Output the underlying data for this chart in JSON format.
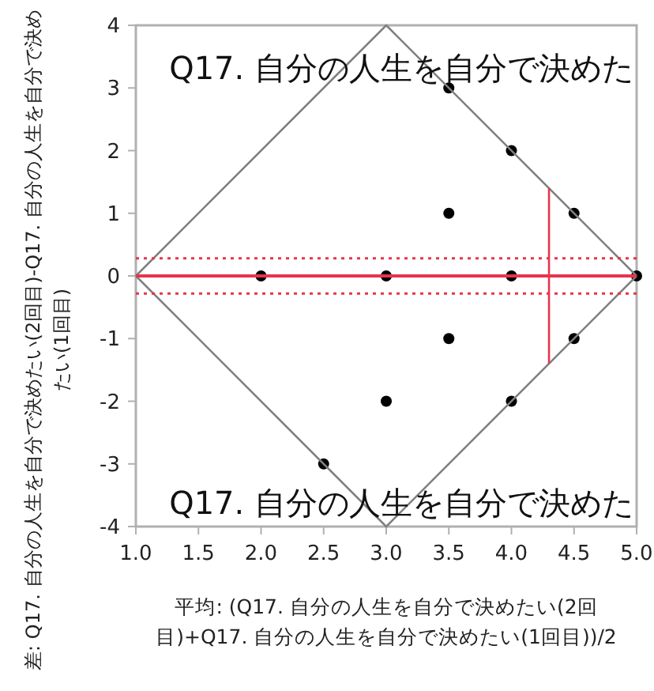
{
  "chart_data": {
    "type": "scatter",
    "xlabel": "平均: (Q17. 自分の人生を自分で決めたい(2回目)+Q17. 自分の人生を自分で決めたい(1回目))/2",
    "ylabel": "差: Q17. 自分の人生を自分で決めたい(2回目)-Q17. 自分の人生を自分で決めたい(1回目)",
    "annotations": [
      "Q17. 自分の人生を自分で決めた",
      "Q17. 自分の人生を自分で決めた"
    ],
    "series": [
      {
        "type": "scatter",
        "color": "#000000",
        "x": [
          2,
          3,
          3.5,
          4,
          3.5,
          4.5,
          4,
          5,
          3.5,
          4.5,
          3,
          4,
          2.5
        ],
        "values": [
          0,
          0,
          3,
          2,
          1,
          1,
          0,
          0,
          -1,
          -1,
          -2,
          -2,
          -3
        ]
      },
      {
        "type": "line",
        "color": "#808080",
        "x": [
          1,
          3,
          5
        ],
        "values": [
          0,
          4,
          0
        ],
        "marker": "none",
        "line_style": "solid"
      },
      {
        "type": "line",
        "color": "#808080",
        "x": [
          1,
          3,
          5
        ],
        "values": [
          0,
          -4,
          0
        ],
        "marker": "none",
        "line_style": "solid"
      },
      {
        "type": "line",
        "color": "#e8344e",
        "x": [
          4.3,
          4.3
        ],
        "values": [
          -1.4,
          1.4
        ],
        "marker": "none",
        "line_style": "solid"
      }
    ],
    "ref_lines": [
      {
        "axis": "y",
        "value": 0,
        "color": "#e8344e",
        "line_style": "solid"
      },
      {
        "axis": "y",
        "value": 0.28,
        "color": "#e8344e",
        "line_style": "dotted"
      },
      {
        "axis": "y",
        "value": -0.28,
        "color": "#e8344e",
        "line_style": "dotted"
      }
    ],
    "xlim": [
      1,
      5
    ],
    "ylim": [
      -4,
      4
    ],
    "xticks": [
      {
        "value": 1,
        "label": "1.0"
      },
      {
        "value": 1.5,
        "label": "1.5"
      },
      {
        "value": 2,
        "label": "2.0"
      },
      {
        "value": 2.5,
        "label": "2.5"
      },
      {
        "value": 3,
        "label": "3.0"
      },
      {
        "value": 3.5,
        "label": "3.5"
      },
      {
        "value": 4,
        "label": "4.0"
      },
      {
        "value": 4.5,
        "label": "4.5"
      },
      {
        "value": 5,
        "label": "5.0"
      }
    ],
    "yticks": [
      -4,
      -3,
      -2,
      -1,
      0,
      1,
      2,
      3,
      4
    ],
    "marker": "circle",
    "grid": false
  }
}
